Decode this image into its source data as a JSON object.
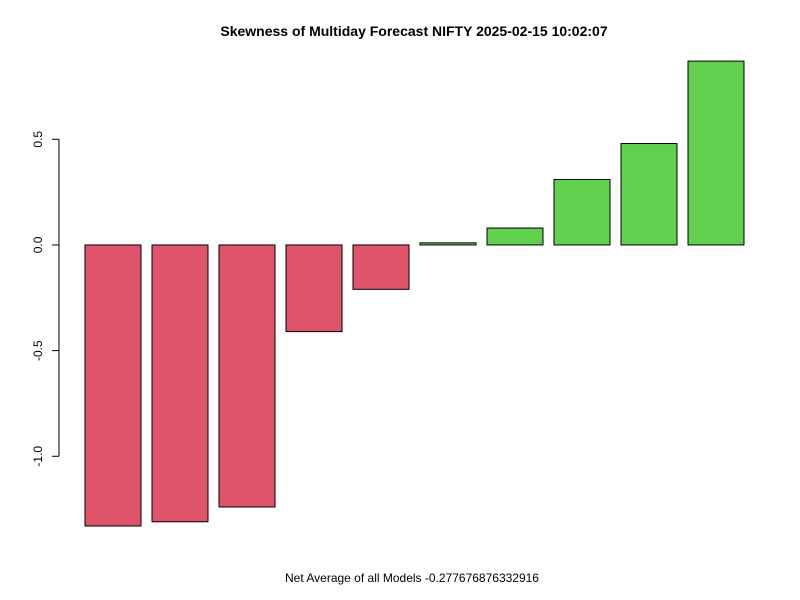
{
  "chart_data": {
    "type": "bar",
    "title": "Skewness of Multiday Forecast NIFTY 2025-02-15 10:02:07",
    "xlabel": "Net Average of all Models  -0.277676876332916",
    "ylabel": "",
    "ylim": [
      -1.33,
      0.88
    ],
    "yticks": [
      -1.0,
      -0.5,
      0.0,
      0.5
    ],
    "ytick_labels": [
      "-1.0",
      "-0.5",
      "0.0",
      "0.5"
    ],
    "grid": false,
    "legend": "none",
    "values": [
      -1.33,
      -1.31,
      -1.24,
      -0.41,
      -0.21,
      0.01,
      0.08,
      0.31,
      0.48,
      0.87
    ],
    "colors": {
      "negative": "#DF536B",
      "positive": "#61D04F",
      "outline": "#000000"
    }
  }
}
